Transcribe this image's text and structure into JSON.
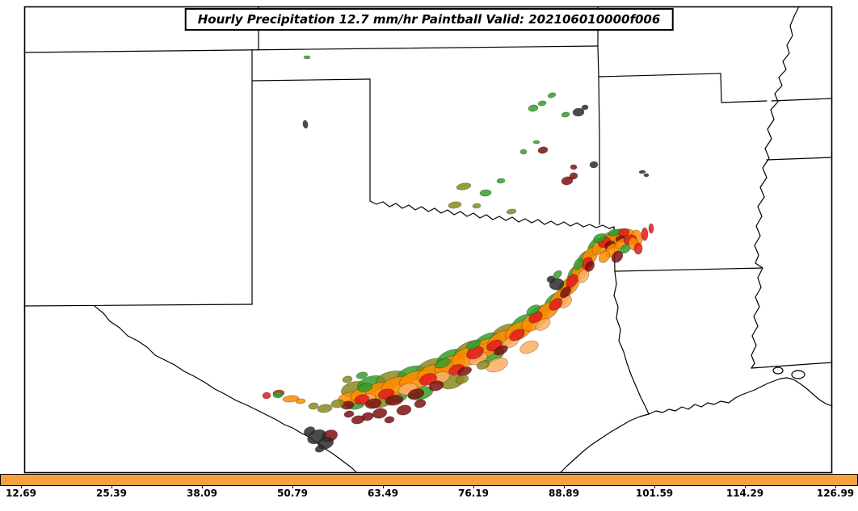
{
  "figure": {
    "title": "Hourly Precipitation 12.7 mm/hr Paintball Valid: 202106010000f006"
  },
  "colorbar": {
    "fill_color": "#F5A142",
    "ticks": [
      "12.69",
      "25.39",
      "38.09",
      "50.79",
      "63.49",
      "76.19",
      "88.89",
      "101.59",
      "114.29",
      "126.99"
    ]
  },
  "chart_data": {
    "type": "paintball-precipitation-map",
    "title": "Hourly Precipitation 12.7 mm/hr Paintball Valid: 202106010000f006",
    "variable": "Hourly Precipitation",
    "threshold": "12.7 mm/hr",
    "valid": "202106010000f006",
    "colorbar_ticks": [
      12.69,
      25.39,
      38.09,
      50.79,
      63.49,
      76.19,
      88.89,
      101.59,
      114.29,
      126.99
    ],
    "colorbar_color": "#F5A142",
    "member_colors": [
      "#33a02c",
      "#8a8a1e",
      "#ff8c00",
      "#fdae61",
      "#e31a1c",
      "#7f1010",
      "#2b2b2b"
    ],
    "clusters": [
      {
        "area": "SW-to-NE squall line across central/east Texas toward TX-OK-AR corner",
        "colors": [
          "green",
          "olive",
          "orange",
          "light-orange",
          "red",
          "dark-red",
          "black"
        ]
      },
      {
        "area": "scattered cells over central and eastern Oklahoma",
        "colors": [
          "green",
          "olive",
          "dark-gray",
          "dark-red"
        ]
      },
      {
        "area": "dark cluster on Rio Grande near Eagle Pass",
        "colors": [
          "black",
          "dark-red"
        ]
      }
    ]
  },
  "map": {
    "background": "#ffffff",
    "border_color": "#000000",
    "member_palette": [
      "#33a02c",
      "#8a8a1e",
      "#ff8c00",
      "#fdae61",
      "#e31a1c",
      "#7f1010",
      "#2b2b2b"
    ],
    "blobs": [
      [
        438,
        482,
        16,
        9,
        -15,
        1
      ],
      [
        460,
        476,
        18,
        10,
        -15,
        0
      ],
      [
        485,
        470,
        20,
        10,
        -12,
        1
      ],
      [
        510,
        463,
        18,
        9,
        -15,
        0
      ],
      [
        535,
        455,
        20,
        10,
        -18,
        1
      ],
      [
        558,
        444,
        18,
        10,
        -22,
        0
      ],
      [
        580,
        433,
        18,
        9,
        -25,
        1
      ],
      [
        603,
        423,
        18,
        9,
        -25,
        0
      ],
      [
        625,
        412,
        17,
        9,
        -25,
        1
      ],
      [
        648,
        400,
        16,
        9,
        -28,
        0
      ],
      [
        668,
        388,
        15,
        8,
        -32,
        1
      ],
      [
        686,
        373,
        14,
        8,
        -40,
        0
      ],
      [
        700,
        357,
        13,
        8,
        -50,
        1
      ],
      [
        712,
        340,
        12,
        8,
        -55,
        0
      ],
      [
        724,
        322,
        12,
        8,
        -60,
        1
      ],
      [
        737,
        306,
        12,
        8,
        -55,
        0
      ],
      [
        752,
        296,
        12,
        7,
        -30,
        1
      ],
      [
        766,
        291,
        11,
        7,
        -15,
        0
      ],
      [
        470,
        497,
        16,
        8,
        -10,
        1
      ],
      [
        520,
        487,
        16,
        8,
        -12,
        0
      ],
      [
        560,
        473,
        15,
        8,
        -18,
        1
      ],
      [
        610,
        440,
        15,
        8,
        -25,
        0
      ],
      [
        440,
        500,
        12,
        7,
        -8,
        0
      ],
      [
        490,
        492,
        14,
        7,
        -10,
        0
      ],
      [
        432,
        494,
        14,
        8,
        -12,
        2
      ],
      [
        450,
        489,
        16,
        9,
        -12,
        2
      ],
      [
        470,
        484,
        18,
        10,
        -12,
        2
      ],
      [
        492,
        478,
        20,
        11,
        -14,
        2
      ],
      [
        514,
        471,
        20,
        11,
        -16,
        2
      ],
      [
        536,
        463,
        20,
        11,
        -18,
        2
      ],
      [
        557,
        453,
        20,
        11,
        -22,
        2
      ],
      [
        578,
        442,
        20,
        11,
        -24,
        2
      ],
      [
        600,
        432,
        20,
        11,
        -24,
        2
      ],
      [
        621,
        421,
        19,
        10,
        -26,
        2
      ],
      [
        642,
        410,
        18,
        10,
        -28,
        2
      ],
      [
        661,
        398,
        17,
        10,
        -32,
        2
      ],
      [
        678,
        385,
        16,
        9,
        -38,
        2
      ],
      [
        693,
        370,
        15,
        9,
        -46,
        2
      ],
      [
        706,
        353,
        14,
        9,
        -54,
        2
      ],
      [
        718,
        335,
        13,
        9,
        -60,
        2
      ],
      [
        730,
        318,
        13,
        8,
        -58,
        2
      ],
      [
        744,
        305,
        13,
        8,
        -40,
        2
      ],
      [
        760,
        297,
        13,
        8,
        -20,
        2
      ],
      [
        775,
        292,
        12,
        8,
        -10,
        2
      ],
      [
        788,
        295,
        7,
        10,
        -5,
        2
      ],
      [
        615,
        452,
        14,
        8,
        -20,
        3
      ],
      [
        655,
        430,
        12,
        7,
        -22,
        3
      ],
      [
        455,
        494,
        10,
        6,
        -12,
        3
      ],
      [
        505,
        482,
        12,
        7,
        -14,
        3
      ],
      [
        545,
        468,
        12,
        7,
        -18,
        3
      ],
      [
        592,
        444,
        12,
        7,
        -24,
        3
      ],
      [
        632,
        424,
        11,
        6,
        -26,
        3
      ],
      [
        672,
        402,
        10,
        6,
        -32,
        3
      ],
      [
        700,
        374,
        9,
        6,
        -45,
        3
      ],
      [
        722,
        342,
        9,
        6,
        -58,
        3
      ],
      [
        448,
        495,
        9,
        6,
        -12,
        4
      ],
      [
        478,
        488,
        10,
        6,
        -12,
        4
      ],
      [
        530,
        470,
        11,
        7,
        -18,
        4
      ],
      [
        565,
        458,
        10,
        6,
        -20,
        4
      ],
      [
        588,
        437,
        11,
        7,
        -24,
        4
      ],
      [
        612,
        428,
        10,
        6,
        -24,
        4
      ],
      [
        640,
        415,
        10,
        6,
        -28,
        4
      ],
      [
        663,
        393,
        9,
        6,
        -32,
        4
      ],
      [
        688,
        377,
        9,
        6,
        -40,
        4
      ],
      [
        708,
        348,
        9,
        6,
        -54,
        4
      ],
      [
        727,
        326,
        8,
        6,
        -58,
        4
      ],
      [
        748,
        300,
        8,
        6,
        -30,
        4
      ],
      [
        772,
        288,
        7,
        5,
        -10,
        4
      ],
      [
        798,
        290,
        4,
        8,
        0,
        4
      ],
      [
        806,
        283,
        3,
        6,
        0,
        4
      ],
      [
        345,
        487,
        7,
        4,
        -5,
        4
      ],
      [
        330,
        490,
        5,
        4,
        -5,
        4
      ],
      [
        462,
        500,
        10,
        6,
        -10,
        5
      ],
      [
        488,
        496,
        11,
        6,
        -10,
        5
      ],
      [
        515,
        488,
        10,
        6,
        -14,
        5
      ],
      [
        540,
        478,
        9,
        6,
        -16,
        5
      ],
      [
        575,
        460,
        9,
        5,
        -20,
        5
      ],
      [
        620,
        434,
        9,
        5,
        -24,
        5
      ],
      [
        700,
        362,
        8,
        5,
        -48,
        5
      ],
      [
        730,
        330,
        7,
        5,
        -55,
        5
      ],
      [
        755,
        304,
        7,
        5,
        -30,
        5
      ],
      [
        768,
        296,
        6,
        4,
        -15,
        5
      ],
      [
        430,
        502,
        8,
        5,
        -8,
        5
      ],
      [
        408,
        540,
        10,
        7,
        -20,
        5
      ],
      [
        470,
        512,
        9,
        6,
        -12,
        5
      ],
      [
        500,
        508,
        9,
        6,
        -12,
        5
      ],
      [
        455,
        516,
        7,
        5,
        -10,
        5
      ],
      [
        482,
        520,
        6,
        4,
        -10,
        5
      ],
      [
        520,
        500,
        7,
        5,
        -14,
        5
      ],
      [
        443,
        520,
        8,
        5,
        -10,
        5
      ],
      [
        432,
        513,
        6,
        4,
        -10,
        5
      ],
      [
        392,
        541,
        12,
        8,
        -25,
        6
      ],
      [
        403,
        549,
        10,
        7,
        -20,
        6
      ],
      [
        383,
        534,
        7,
        5,
        -25,
        6
      ],
      [
        396,
        556,
        6,
        4,
        -15,
        6
      ],
      [
        689,
        352,
        9,
        7,
        -10,
        6
      ],
      [
        682,
        346,
        5,
        4,
        -10,
        6
      ],
      [
        452,
        480,
        9,
        5,
        -12,
        0
      ],
      [
        548,
        450,
        10,
        5,
        -22,
        0
      ],
      [
        586,
        427,
        9,
        5,
        -25,
        0
      ],
      [
        660,
        384,
        9,
        5,
        -32,
        0
      ],
      [
        716,
        327,
        8,
        5,
        -58,
        0
      ],
      [
        742,
        295,
        8,
        5,
        -25,
        0
      ],
      [
        760,
        288,
        7,
        4,
        -15,
        0
      ],
      [
        690,
        340,
        6,
        4,
        -40,
        0
      ],
      [
        448,
        465,
        7,
        4,
        -12,
        0
      ],
      [
        430,
        470,
        6,
        4,
        -10,
        1
      ],
      [
        572,
        470,
        8,
        5,
        -18,
        1
      ],
      [
        598,
        452,
        8,
        5,
        -20,
        1
      ],
      [
        758,
        310,
        10,
        7,
        -45,
        2
      ],
      [
        770,
        302,
        9,
        6,
        -30,
        2
      ],
      [
        780,
        297,
        8,
        6,
        -15,
        4
      ],
      [
        764,
        318,
        8,
        6,
        -50,
        5
      ],
      [
        774,
        308,
        7,
        5,
        -35,
        0
      ],
      [
        784,
        302,
        6,
        8,
        -10,
        2
      ],
      [
        790,
        308,
        5,
        7,
        0,
        4
      ],
      [
        748,
        318,
        8,
        6,
        -55,
        2
      ],
      [
        360,
        494,
        10,
        4,
        -5,
        2
      ],
      [
        372,
        497,
        6,
        3,
        -5,
        2
      ],
      [
        344,
        489,
        6,
        4,
        -5,
        0
      ],
      [
        402,
        506,
        9,
        5,
        -8,
        1
      ],
      [
        388,
        503,
        6,
        4,
        -8,
        1
      ],
      [
        418,
        500,
        8,
        5,
        -8,
        1
      ],
      [
        574,
        231,
        9,
        4,
        -10,
        1
      ],
      [
        601,
        239,
        7,
        4,
        -5,
        0
      ],
      [
        563,
        254,
        8,
        4,
        -8,
        1
      ],
      [
        590,
        255,
        5,
        3,
        -5,
        1
      ],
      [
        620,
        224,
        5,
        3,
        -5,
        0
      ],
      [
        633,
        262,
        6,
        3,
        -8,
        1
      ],
      [
        660,
        134,
        6,
        4,
        -10,
        0
      ],
      [
        671,
        128,
        5,
        3,
        -10,
        0
      ],
      [
        683,
        118,
        5,
        3,
        -15,
        0
      ],
      [
        700,
        142,
        5,
        3,
        -10,
        0
      ],
      [
        716,
        139,
        7,
        5,
        -5,
        6
      ],
      [
        724,
        133,
        4,
        3,
        -5,
        6
      ],
      [
        672,
        186,
        6,
        4,
        -10,
        5
      ],
      [
        702,
        224,
        7,
        5,
        -10,
        5
      ],
      [
        710,
        218,
        5,
        4,
        -10,
        5
      ],
      [
        735,
        204,
        5,
        4,
        -5,
        6
      ],
      [
        795,
        213,
        4,
        2,
        -5,
        6
      ],
      [
        800,
        217,
        3,
        2,
        0,
        6
      ],
      [
        648,
        188,
        4,
        3,
        0,
        0
      ],
      [
        664,
        176,
        4,
        2,
        0,
        0
      ],
      [
        710,
        207,
        4,
        3,
        0,
        5
      ],
      [
        378,
        154,
        3,
        5,
        -10,
        6
      ],
      [
        380,
        71,
        4,
        2,
        0,
        0
      ]
    ]
  }
}
